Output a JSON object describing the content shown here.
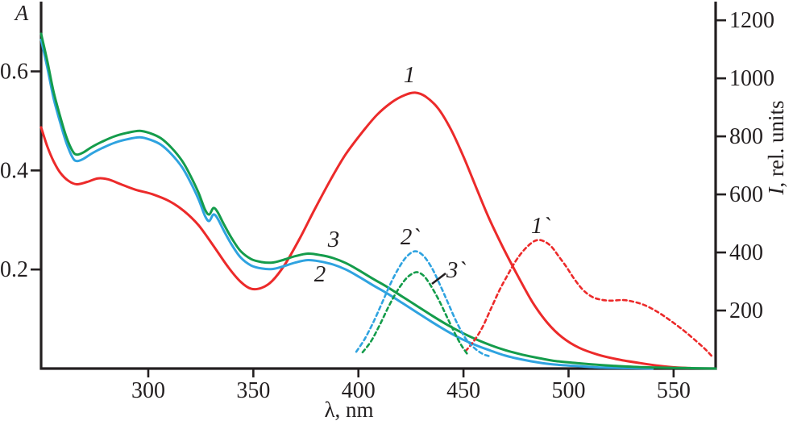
{
  "colors": {
    "ink": "#231f20",
    "red": "#ec2a2a",
    "green": "#149c4b",
    "blue": "#2fa3e0",
    "background": "#ffffff"
  },
  "chart_data": {
    "type": "line",
    "title": "",
    "xlabel": "λ, nm",
    "ylabel_left": "A",
    "ylabel_right": "I, rel. units",
    "ylabel_right_symbol": "I",
    "ylabel_right_rest": ", rel. units",
    "xlim": [
      249,
      570
    ],
    "ylim_left": [
      0,
      0.736
    ],
    "ylim_right": [
      0,
      1256
    ],
    "grid": false,
    "legend_position": "annotations on curves",
    "x_ticks": [
      {
        "v": 300,
        "label": "300"
      },
      {
        "v": 350,
        "label": "350"
      },
      {
        "v": 400,
        "label": "400"
      },
      {
        "v": 450,
        "label": "450"
      },
      {
        "v": 500,
        "label": "500"
      },
      {
        "v": 550,
        "label": "550"
      }
    ],
    "y_left_ticks": [
      {
        "v": 0.2,
        "label": "0.2"
      },
      {
        "v": 0.4,
        "label": "0.4"
      },
      {
        "v": 0.6,
        "label": "0.6"
      }
    ],
    "y_right_ticks": [
      {
        "v": 200,
        "label": "200"
      },
      {
        "v": 400,
        "label": "400"
      },
      {
        "v": 600,
        "label": "600"
      },
      {
        "v": 800,
        "label": "800"
      },
      {
        "v": 1000,
        "label": "1000"
      },
      {
        "v": 1200,
        "label": "1200"
      }
    ],
    "series": [
      {
        "slug": "1",
        "label": "1",
        "name": "absorption spectrum 1 (red, solid, left axis A)",
        "axis": "left",
        "line": "solid",
        "color": "#ec2a2a",
        "points": [
          [
            249,
            0.487
          ],
          [
            252,
            0.448
          ],
          [
            255,
            0.418
          ],
          [
            258,
            0.396
          ],
          [
            262,
            0.379
          ],
          [
            266,
            0.372
          ],
          [
            271,
            0.377
          ],
          [
            276,
            0.384
          ],
          [
            281,
            0.382
          ],
          [
            287,
            0.372
          ],
          [
            294,
            0.361
          ],
          [
            302,
            0.352
          ],
          [
            310,
            0.338
          ],
          [
            317,
            0.318
          ],
          [
            324,
            0.289
          ],
          [
            331,
            0.248
          ],
          [
            338,
            0.205
          ],
          [
            344,
            0.175
          ],
          [
            349,
            0.161
          ],
          [
            354,
            0.163
          ],
          [
            359,
            0.177
          ],
          [
            365,
            0.21
          ],
          [
            372,
            0.262
          ],
          [
            379,
            0.32
          ],
          [
            387,
            0.383
          ],
          [
            394,
            0.433
          ],
          [
            402,
            0.478
          ],
          [
            409,
            0.513
          ],
          [
            416,
            0.538
          ],
          [
            422,
            0.552
          ],
          [
            427,
            0.557
          ],
          [
            432,
            0.549
          ],
          [
            438,
            0.525
          ],
          [
            444,
            0.483
          ],
          [
            450,
            0.428
          ],
          [
            456,
            0.366
          ],
          [
            462,
            0.305
          ],
          [
            469,
            0.243
          ],
          [
            476,
            0.186
          ],
          [
            483,
            0.133
          ],
          [
            490,
            0.092
          ],
          [
            497,
            0.063
          ],
          [
            505,
            0.042
          ],
          [
            514,
            0.028
          ],
          [
            524,
            0.018
          ],
          [
            534,
            0.011
          ],
          [
            544,
            0.005
          ],
          [
            552,
            0.002
          ],
          [
            558,
            0.001
          ]
        ]
      },
      {
        "slug": "2",
        "label": "2",
        "name": "absorption spectrum 2 (blue, solid, left axis A)",
        "axis": "left",
        "line": "solid",
        "color": "#2fa3e0",
        "points": [
          [
            249,
            0.664
          ],
          [
            252,
            0.607
          ],
          [
            255,
            0.545
          ],
          [
            258,
            0.498
          ],
          [
            261,
            0.456
          ],
          [
            264,
            0.426
          ],
          [
            266,
            0.419
          ],
          [
            269,
            0.423
          ],
          [
            273,
            0.434
          ],
          [
            278,
            0.445
          ],
          [
            284,
            0.456
          ],
          [
            290,
            0.463
          ],
          [
            296,
            0.467
          ],
          [
            301,
            0.462
          ],
          [
            306,
            0.452
          ],
          [
            311,
            0.433
          ],
          [
            316,
            0.407
          ],
          [
            320,
            0.377
          ],
          [
            324,
            0.341
          ],
          [
            327,
            0.308
          ],
          [
            329,
            0.298
          ],
          [
            331,
            0.311
          ],
          [
            333,
            0.303
          ],
          [
            336,
            0.278
          ],
          [
            340,
            0.248
          ],
          [
            344,
            0.224
          ],
          [
            349,
            0.208
          ],
          [
            354,
            0.202
          ],
          [
            359,
            0.201
          ],
          [
            364,
            0.206
          ],
          [
            370,
            0.214
          ],
          [
            376,
            0.219
          ],
          [
            382,
            0.216
          ],
          [
            388,
            0.21
          ],
          [
            394,
            0.2
          ],
          [
            400,
            0.186
          ],
          [
            407,
            0.168
          ],
          [
            414,
            0.151
          ],
          [
            421,
            0.132
          ],
          [
            428,
            0.113
          ],
          [
            435,
            0.094
          ],
          [
            442,
            0.076
          ],
          [
            449,
            0.06
          ],
          [
            456,
            0.047
          ],
          [
            463,
            0.036
          ],
          [
            470,
            0.026
          ],
          [
            478,
            0.018
          ],
          [
            486,
            0.012
          ],
          [
            494,
            0.008
          ],
          [
            504,
            0.005
          ],
          [
            516,
            0.002
          ],
          [
            528,
            0.001
          ],
          [
            540,
            0.0
          ]
        ]
      },
      {
        "slug": "3",
        "label": "3",
        "name": "absorption spectrum 3 (green, solid, left axis A)",
        "axis": "left",
        "line": "solid",
        "color": "#149c4b",
        "points": [
          [
            249,
            0.676
          ],
          [
            252,
            0.62
          ],
          [
            255,
            0.558
          ],
          [
            258,
            0.51
          ],
          [
            261,
            0.468
          ],
          [
            264,
            0.439
          ],
          [
            266,
            0.432
          ],
          [
            269,
            0.436
          ],
          [
            273,
            0.447
          ],
          [
            278,
            0.458
          ],
          [
            284,
            0.469
          ],
          [
            290,
            0.476
          ],
          [
            296,
            0.48
          ],
          [
            301,
            0.475
          ],
          [
            306,
            0.465
          ],
          [
            311,
            0.446
          ],
          [
            316,
            0.42
          ],
          [
            320,
            0.39
          ],
          [
            324,
            0.354
          ],
          [
            327,
            0.321
          ],
          [
            329,
            0.311
          ],
          [
            331,
            0.324
          ],
          [
            333,
            0.316
          ],
          [
            336,
            0.291
          ],
          [
            340,
            0.261
          ],
          [
            344,
            0.237
          ],
          [
            349,
            0.221
          ],
          [
            354,
            0.215
          ],
          [
            359,
            0.214
          ],
          [
            364,
            0.219
          ],
          [
            370,
            0.227
          ],
          [
            376,
            0.232
          ],
          [
            382,
            0.229
          ],
          [
            388,
            0.223
          ],
          [
            394,
            0.213
          ],
          [
            400,
            0.199
          ],
          [
            407,
            0.181
          ],
          [
            414,
            0.164
          ],
          [
            421,
            0.145
          ],
          [
            428,
            0.126
          ],
          [
            435,
            0.107
          ],
          [
            442,
            0.089
          ],
          [
            449,
            0.073
          ],
          [
            456,
            0.059
          ],
          [
            463,
            0.047
          ],
          [
            470,
            0.037
          ],
          [
            478,
            0.028
          ],
          [
            486,
            0.021
          ],
          [
            494,
            0.015
          ],
          [
            504,
            0.011
          ],
          [
            516,
            0.007
          ],
          [
            528,
            0.004
          ],
          [
            542,
            0.002
          ],
          [
            556,
            0.001
          ],
          [
            570,
            0.0
          ]
        ]
      },
      {
        "slug": "1p",
        "label": "1`",
        "name": "emission spectrum 1` (red, dashed, right axis I)",
        "axis": "right",
        "line": "dashed",
        "color": "#ec2a2a",
        "points": [
          [
            451,
            60
          ],
          [
            455,
            95
          ],
          [
            459,
            142
          ],
          [
            463,
            205
          ],
          [
            467,
            268
          ],
          [
            471,
            322
          ],
          [
            475,
            372
          ],
          [
            479,
            410
          ],
          [
            483,
            436
          ],
          [
            486,
            443
          ],
          [
            489,
            436
          ],
          [
            492,
            419
          ],
          [
            495,
            390
          ],
          [
            499,
            350
          ],
          [
            503,
            306
          ],
          [
            507,
            270
          ],
          [
            511,
            248
          ],
          [
            515,
            238
          ],
          [
            520,
            234
          ],
          [
            526,
            236
          ],
          [
            531,
            230
          ],
          [
            536,
            219
          ],
          [
            541,
            201
          ],
          [
            546,
            178
          ],
          [
            551,
            152
          ],
          [
            556,
            124
          ],
          [
            561,
            93
          ],
          [
            565,
            67
          ],
          [
            568,
            44
          ]
        ]
      },
      {
        "slug": "2p",
        "label": "2`",
        "name": "emission spectrum 2` (blue, dashed, right axis I)",
        "axis": "right",
        "line": "dashed",
        "color": "#2fa3e0",
        "points": [
          [
            399,
            58
          ],
          [
            403,
            102
          ],
          [
            407,
            158
          ],
          [
            411,
            222
          ],
          [
            415,
            288
          ],
          [
            419,
            344
          ],
          [
            423,
            386
          ],
          [
            427,
            404
          ],
          [
            431,
            388
          ],
          [
            435,
            346
          ],
          [
            439,
            286
          ],
          [
            443,
            220
          ],
          [
            447,
            156
          ],
          [
            451,
            104
          ],
          [
            455,
            72
          ],
          [
            459,
            51
          ],
          [
            462,
            43
          ]
        ]
      },
      {
        "slug": "3p",
        "label": "3`",
        "name": "emission spectrum 3` (green, dashed, right axis I)",
        "axis": "right",
        "line": "dashed",
        "color": "#149c4b",
        "points": [
          [
            402,
            56
          ],
          [
            406,
            94
          ],
          [
            410,
            148
          ],
          [
            414,
            208
          ],
          [
            418,
            262
          ],
          [
            422,
            304
          ],
          [
            425,
            324
          ],
          [
            428,
            332
          ],
          [
            431,
            320
          ],
          [
            434,
            291
          ],
          [
            438,
            240
          ],
          [
            442,
            180
          ],
          [
            446,
            120
          ],
          [
            449,
            80
          ],
          [
            452,
            48
          ]
        ]
      }
    ]
  }
}
